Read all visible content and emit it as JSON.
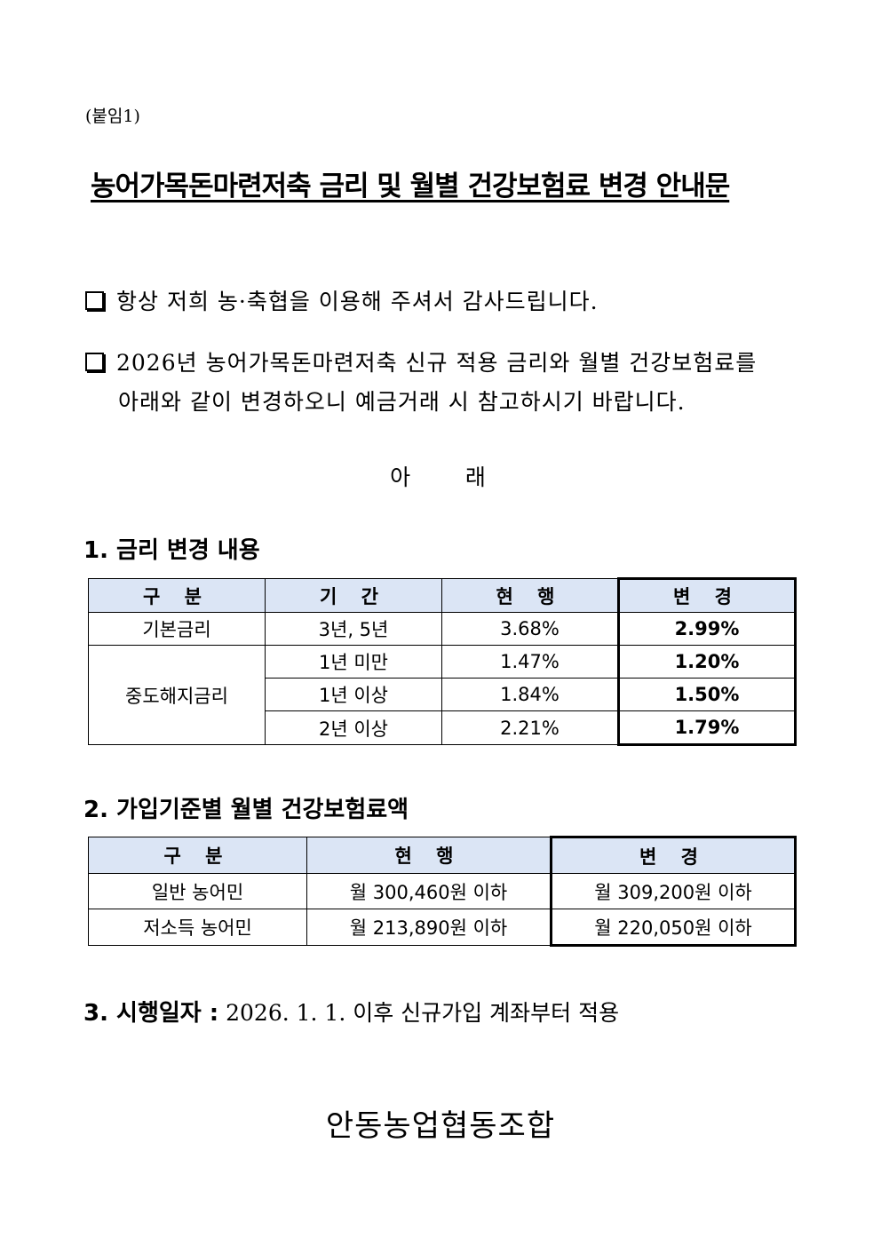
{
  "attachment_label": "(붙임1)",
  "title": "농어가목돈마련저축 금리 및 월별 건강보험료 변경 안내문",
  "paragraphs": [
    {
      "icon": "checkbox-square-icon",
      "lines": [
        "항상 저희 농·축협을 이용해 주셔서 감사드립니다."
      ]
    },
    {
      "icon": "checkbox-square-icon",
      "lines": [
        "2026년 농어가목돈마련저축 신규 적용 금리와 월별 건강보험료를",
        "아래와 같이 변경하오니 예금거래 시 참고하시기 바랍니다."
      ]
    }
  ],
  "notice_heading": "아    래",
  "section1": {
    "heading": "1. 금리 변경 내용",
    "headers": [
      "구 분",
      "기 간",
      "현 행",
      "변 경"
    ],
    "rows": [
      {
        "category": "기본금리",
        "period": "3년, 5년",
        "current": "3.68%",
        "changed": "2.99%"
      },
      {
        "category": "중도해지금리",
        "period": "1년 미만",
        "current": "1.47%",
        "changed": "1.20%"
      },
      {
        "category": "",
        "period": "1년 이상",
        "current": "1.84%",
        "changed": "1.50%"
      },
      {
        "category": "",
        "period": "2년 이상",
        "current": "2.21%",
        "changed": "1.79%"
      }
    ]
  },
  "section2": {
    "heading": "2. 가입기준별 월별 건강보험료액",
    "headers": [
      "구 분",
      "현 행",
      "변 경"
    ],
    "rows": [
      {
        "category": "일반 농어민",
        "current": "월 300,460원 이하",
        "changed": "월 309,200원 이하"
      },
      {
        "category": "저소득 농어민",
        "current": "월 213,890원 이하",
        "changed": "월 220,050원 이하"
      }
    ]
  },
  "section3": {
    "heading": "3. 시행일자 :",
    "text": "2026. 1. 1. 이후 신규가입 계좌부터 적용"
  },
  "signature": "안동농업협동조합",
  "colors": {
    "table_header_bg": "#dbe5f5"
  }
}
